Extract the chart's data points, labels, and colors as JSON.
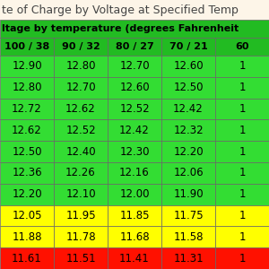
{
  "title_line1": "te of Charge by Voltage at Specified Temp",
  "header1": "ltage by temperature (degrees Fahrenheit",
  "col_headers": [
    "100 / 38",
    "90 / 32",
    "80 / 27",
    "70 / 21",
    "60"
  ],
  "rows": [
    [
      "12.90",
      "12.80",
      "12.70",
      "12.60",
      "1"
    ],
    [
      "12.80",
      "12.70",
      "12.60",
      "12.50",
      "1"
    ],
    [
      "12.72",
      "12.62",
      "12.52",
      "12.42",
      "1"
    ],
    [
      "12.62",
      "12.52",
      "12.42",
      "12.32",
      "1"
    ],
    [
      "12.50",
      "12.40",
      "12.30",
      "12.20",
      "1"
    ],
    [
      "12.36",
      "12.26",
      "12.16",
      "12.06",
      "1"
    ],
    [
      "12.20",
      "12.10",
      "12.00",
      "11.90",
      "1"
    ],
    [
      "12.05",
      "11.95",
      "11.85",
      "11.75",
      "1"
    ],
    [
      "11.88",
      "11.78",
      "11.68",
      "11.58",
      "1"
    ],
    [
      "11.61",
      "11.51",
      "11.41",
      "11.31",
      "1"
    ]
  ],
  "row_colors": [
    "#33dd33",
    "#33dd33",
    "#33dd33",
    "#33dd33",
    "#33dd33",
    "#33dd33",
    "#33dd33",
    "#ffff00",
    "#ffff00",
    "#ff1100"
  ],
  "col_header_bg": "#22bb22",
  "header1_bg": "#22bb22",
  "title_bg": "#fdf5e8",
  "border_color": "#666666",
  "text_color": "#000000",
  "font_size": 8.5,
  "header_font_size": 8,
  "title_font_size": 9
}
